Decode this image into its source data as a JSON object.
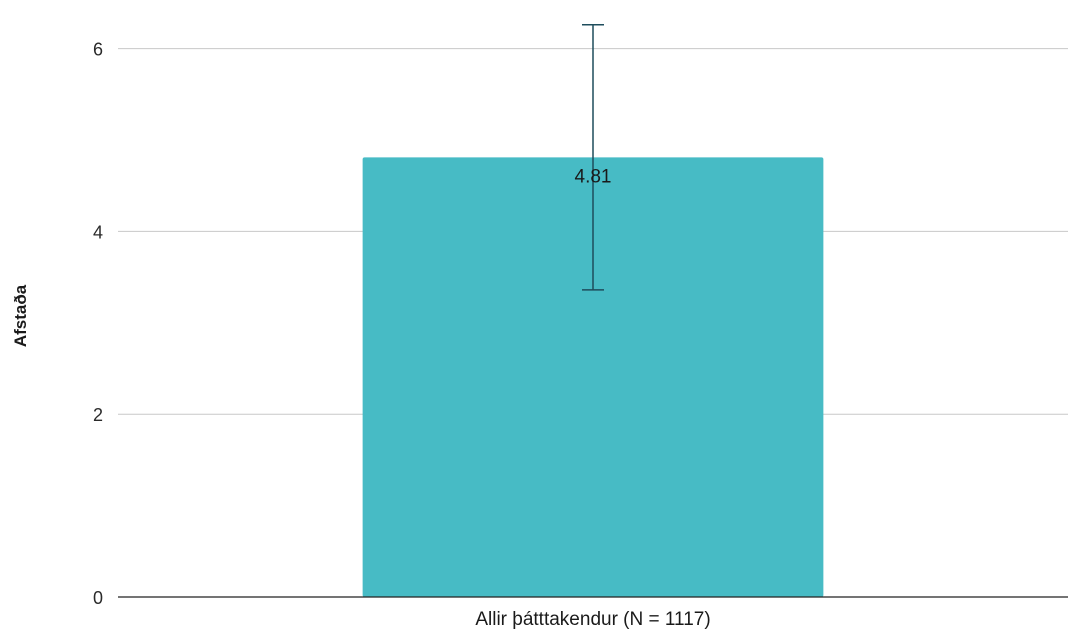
{
  "chart_data": {
    "type": "bar",
    "categories": [
      "Allir þátttakendur (N = 1117)"
    ],
    "series": [
      {
        "values": [
          4.81
        ],
        "error_low": [
          3.36
        ],
        "error_high": [
          6.26
        ],
        "color": "#47bbc5"
      }
    ],
    "data_labels": [
      "4.81"
    ],
    "ylabel": "Afstaða",
    "xlabel": "",
    "ylim": [
      0,
      6.4
    ],
    "yticks": [
      0,
      2,
      4,
      6
    ],
    "ytick_labels": [
      "0",
      "2",
      "4",
      "6"
    ],
    "grid": true,
    "legend": "none",
    "errorbar_color": "#1e4d5c"
  }
}
